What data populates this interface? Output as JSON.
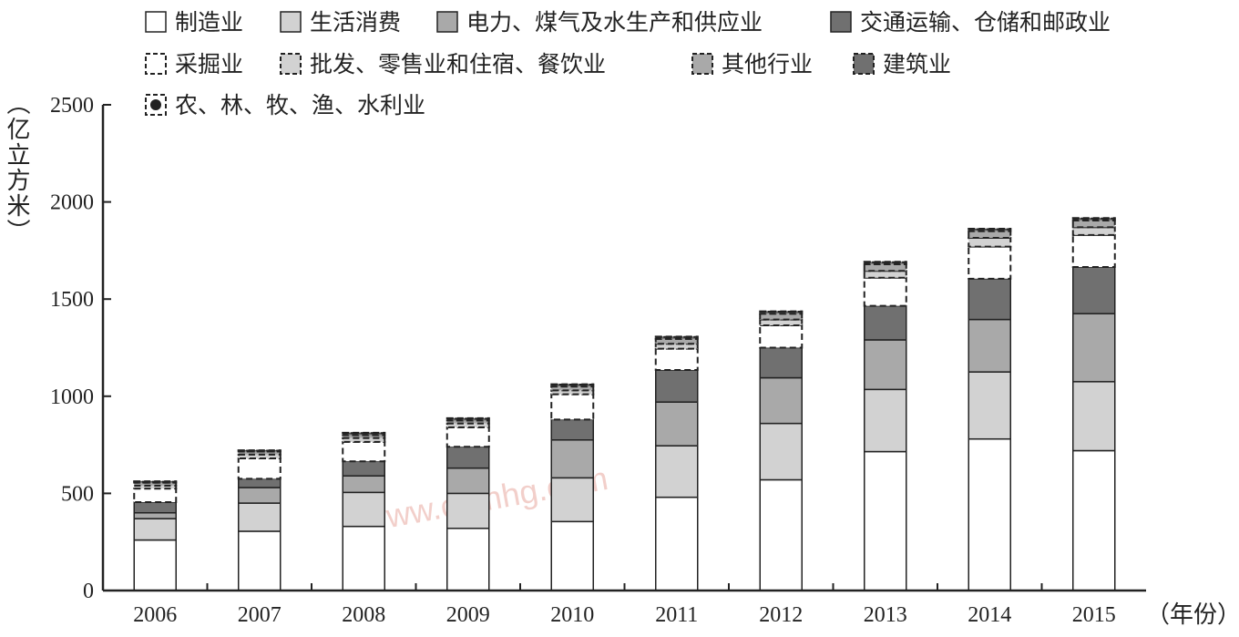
{
  "chart_data": {
    "type": "bar",
    "stacked": true,
    "title": "",
    "ylabel": "（亿立方米）",
    "xlabel": "（年份）",
    "ylim": [
      0,
      2500
    ],
    "yticks": [
      0,
      500,
      1000,
      1500,
      2000,
      2500
    ],
    "categories": [
      "2006",
      "2007",
      "2008",
      "2009",
      "2010",
      "2011",
      "2012",
      "2013",
      "2014",
      "2015"
    ],
    "legend_placement": "top",
    "watermark": "www.cnmhg.com",
    "series": [
      {
        "name": "制造业",
        "fill": "#ffffff",
        "dashed": false,
        "values": [
          260,
          305,
          330,
          320,
          355,
          480,
          570,
          715,
          780,
          720
        ]
      },
      {
        "name": "生活消费",
        "fill": "#d2d2d2",
        "dashed": false,
        "values": [
          110,
          145,
          175,
          180,
          225,
          265,
          290,
          320,
          345,
          355
        ]
      },
      {
        "name": "电力、煤气及水生产和供应业",
        "fill": "#a9a9a9",
        "dashed": false,
        "values": [
          30,
          80,
          85,
          130,
          195,
          225,
          235,
          255,
          270,
          350
        ]
      },
      {
        "name": "交通运输、仓储和邮政业",
        "fill": "#707070",
        "dashed": false,
        "values": [
          55,
          45,
          75,
          110,
          105,
          165,
          155,
          175,
          210,
          240
        ]
      },
      {
        "name": "采掘业",
        "fill": "#ffffff",
        "dashed": true,
        "values": [
          70,
          105,
          100,
          100,
          130,
          110,
          115,
          145,
          165,
          165
        ]
      },
      {
        "name": "批发、零售业和住宿、餐饮业",
        "fill": "#d2d2d2",
        "dashed": true,
        "values": [
          15,
          20,
          20,
          20,
          20,
          25,
          30,
          35,
          45,
          40
        ]
      },
      {
        "name": "其他行业",
        "fill": "#a9a9a9",
        "dashed": true,
        "values": [
          15,
          15,
          15,
          15,
          20,
          25,
          30,
          35,
          35,
          35
        ]
      },
      {
        "name": "建筑业",
        "fill": "#707070",
        "dashed": true,
        "values": [
          5,
          5,
          10,
          10,
          10,
          10,
          10,
          10,
          10,
          10
        ]
      },
      {
        "name": "农、林、牧、渔、水利业",
        "fill": "#222222",
        "dashed": true,
        "values": [
          2,
          2,
          2,
          2,
          2,
          2,
          2,
          2,
          2,
          2
        ]
      }
    ]
  }
}
